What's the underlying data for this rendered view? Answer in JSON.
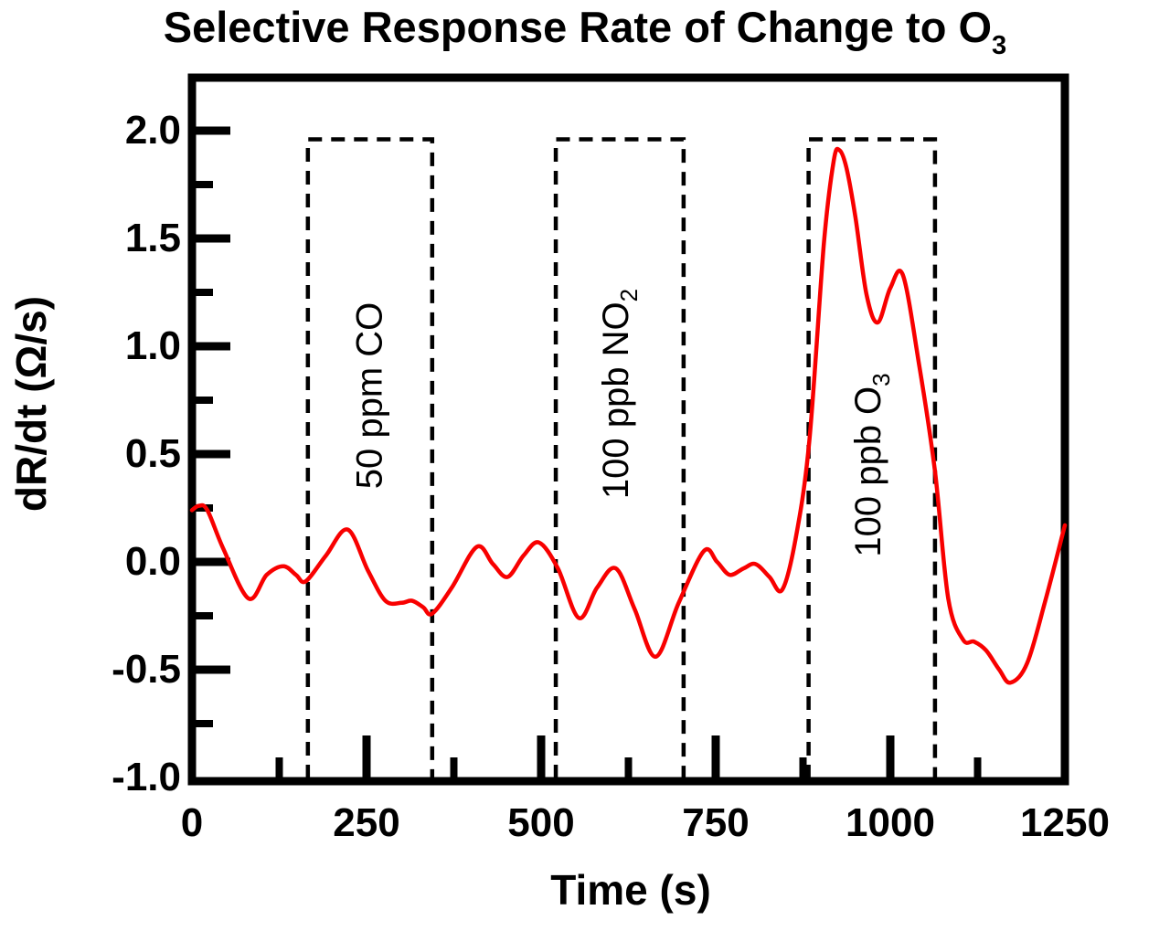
{
  "chart_data": {
    "type": "line",
    "title_main": "Selective Response Rate of Change to O",
    "title_sub": "3",
    "xlabel": "Time (s)",
    "ylabel": "dR/dt (Ω/s)",
    "xlim": [
      0,
      1250
    ],
    "ylim": [
      -1.0,
      2.0
    ],
    "grid": false,
    "legend": null,
    "x_ticks": {
      "major": [
        0,
        250,
        500,
        750,
        1000,
        1250
      ],
      "labels": [
        "0",
        "250",
        "500",
        "750",
        "1000",
        "1250"
      ],
      "minor": [
        125,
        375,
        625,
        875,
        1125
      ]
    },
    "y_ticks": {
      "major": [
        2.0,
        1.5,
        1.0,
        0.5,
        0.0,
        -0.5,
        -1.0
      ],
      "labels": [
        "2.0",
        "1.5",
        "1.0",
        "0.5",
        "0.0",
        "-0.5",
        "-1.0"
      ],
      "minor": [
        1.75,
        1.25,
        0.75,
        0.25,
        -0.25,
        -0.75
      ]
    },
    "line_color": "#f80000",
    "axis_color": "#000000",
    "background": "#ffffff",
    "points": [
      [
        0,
        0.24
      ],
      [
        10,
        0.26
      ],
      [
        22,
        0.24
      ],
      [
        45,
        0.06
      ],
      [
        81,
        -0.17
      ],
      [
        107,
        -0.06
      ],
      [
        131,
        -0.02
      ],
      [
        149,
        -0.06
      ],
      [
        163,
        -0.09
      ],
      [
        192,
        0.03
      ],
      [
        223,
        0.15
      ],
      [
        252,
        -0.04
      ],
      [
        277,
        -0.18
      ],
      [
        300,
        -0.19
      ],
      [
        315,
        -0.18
      ],
      [
        331,
        -0.21
      ],
      [
        344,
        -0.24
      ],
      [
        372,
        -0.12
      ],
      [
        408,
        0.07
      ],
      [
        431,
        -0.01
      ],
      [
        452,
        -0.07
      ],
      [
        475,
        0.03
      ],
      [
        497,
        0.09
      ],
      [
        524,
        -0.03
      ],
      [
        554,
        -0.26
      ],
      [
        580,
        -0.12
      ],
      [
        607,
        -0.03
      ],
      [
        634,
        -0.22
      ],
      [
        664,
        -0.44
      ],
      [
        697,
        -0.19
      ],
      [
        733,
        0.05
      ],
      [
        752,
        0
      ],
      [
        770,
        -0.06
      ],
      [
        790,
        -0.03
      ],
      [
        807,
        -0.01
      ],
      [
        827,
        -0.07
      ],
      [
        845,
        -0.13
      ],
      [
        864,
        0.1
      ],
      [
        884,
        0.56
      ],
      [
        905,
        1.48
      ],
      [
        919,
        1.86
      ],
      [
        927,
        1.91
      ],
      [
        937,
        1.83
      ],
      [
        950,
        1.6
      ],
      [
        966,
        1.24
      ],
      [
        982,
        1.11
      ],
      [
        1000,
        1.27
      ],
      [
        1018,
        1.33
      ],
      [
        1041,
        0.92
      ],
      [
        1064,
        0.42
      ],
      [
        1083,
        -0.17
      ],
      [
        1104,
        -0.36
      ],
      [
        1120,
        -0.37
      ],
      [
        1137,
        -0.41
      ],
      [
        1156,
        -0.5
      ],
      [
        1172,
        -0.56
      ],
      [
        1196,
        -0.47
      ],
      [
        1222,
        -0.18
      ],
      [
        1250,
        0.17
      ]
    ],
    "annotations": [
      {
        "label_main": "50 ppm CO",
        "label_sub": "",
        "x_start": 166,
        "x_end": 344,
        "y_top": 1.96,
        "label_y": 0.77
      },
      {
        "label_main": "100 ppb NO",
        "label_sub": "2",
        "x_start": 521,
        "x_end": 704,
        "y_top": 1.96,
        "label_y": 0.78
      },
      {
        "label_main": "100 ppb O",
        "label_sub": "3",
        "x_start": 883,
        "x_end": 1064,
        "y_top": 1.96,
        "label_y": 0.45
      }
    ]
  }
}
